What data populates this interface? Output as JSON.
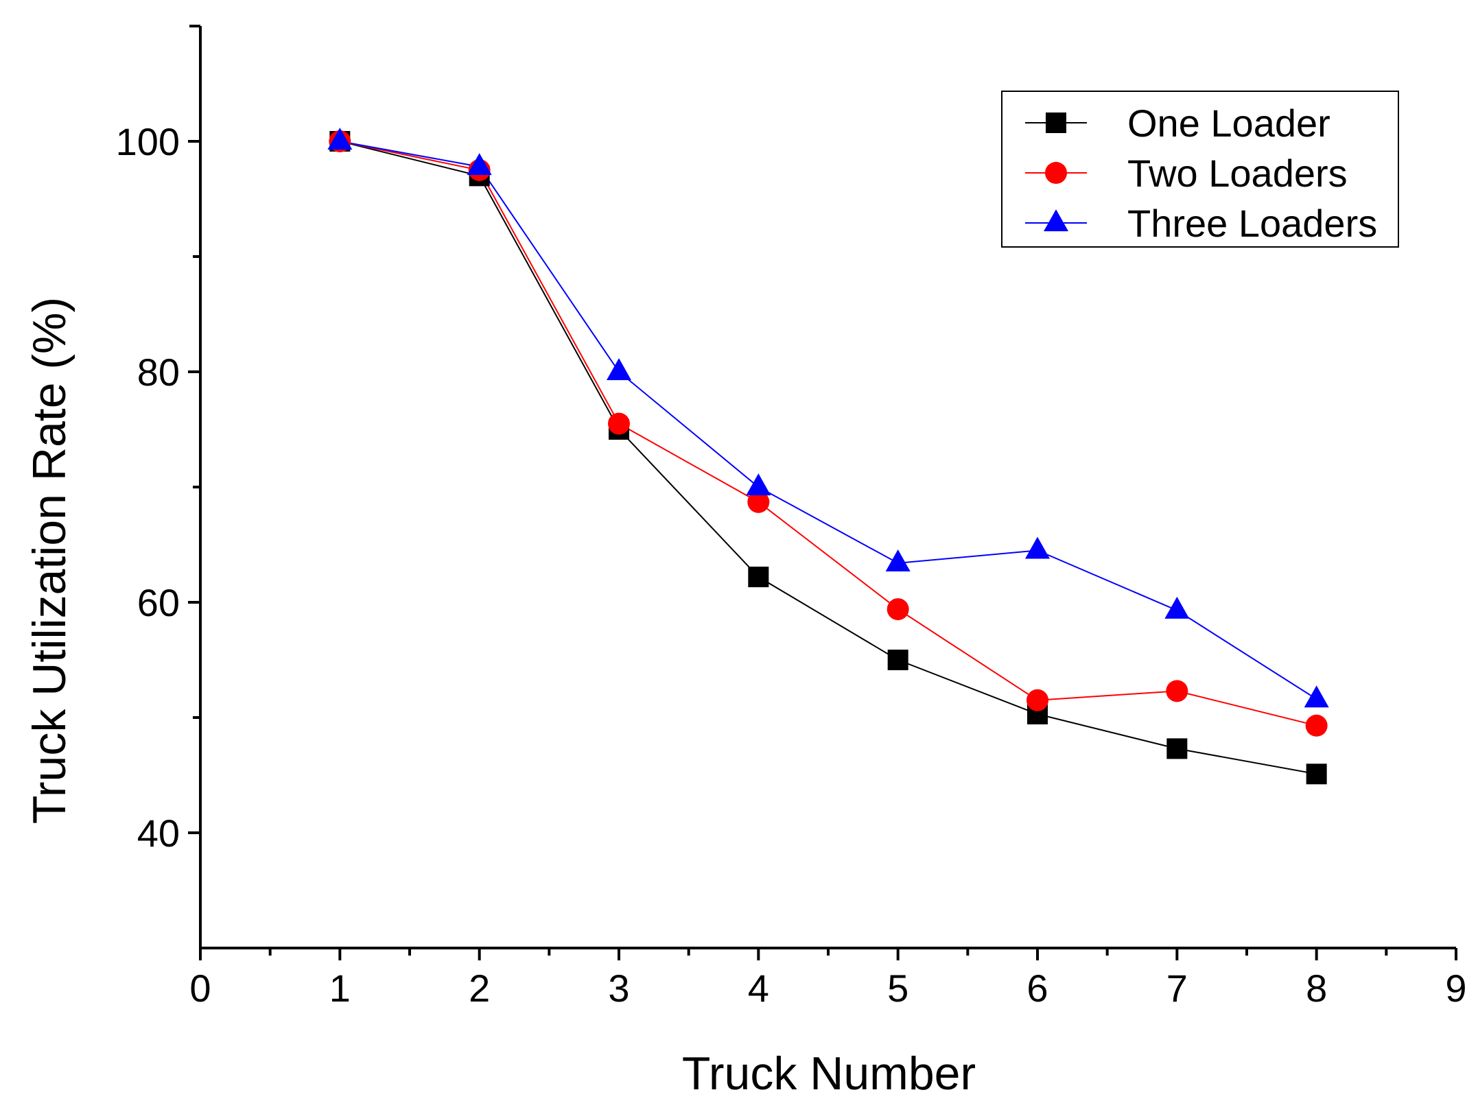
{
  "chart_data": {
    "type": "line",
    "title": "",
    "xlabel": "Truck Number",
    "ylabel": "Truck Utilization Rate (%)",
    "xlim": [
      0,
      9
    ],
    "ylim": [
      30,
      110
    ],
    "x_ticks": [
      0,
      1,
      2,
      3,
      4,
      5,
      6,
      7,
      8,
      9
    ],
    "x_tick_labels": [
      "0",
      "1",
      "2",
      "3",
      "4",
      "5",
      "6",
      "7",
      "8",
      "9"
    ],
    "y_ticks": [
      40,
      60,
      80,
      100
    ],
    "y_tick_labels": [
      "40",
      "60",
      "80",
      "100"
    ],
    "grid": false,
    "legend_position": "top-right",
    "x": [
      1,
      2,
      3,
      4,
      5,
      6,
      7,
      8
    ],
    "series": [
      {
        "name": "One Loader",
        "color": "#000000",
        "marker": "square",
        "values": [
          100,
          97,
          75,
          62.2,
          55,
          50.3,
          47.3,
          45.1
        ]
      },
      {
        "name": "Two Loaders",
        "color": "#ff0000",
        "marker": "circle",
        "values": [
          100,
          97.5,
          75.5,
          68.7,
          59.4,
          51.5,
          52.3,
          49.3
        ]
      },
      {
        "name": "Three Loaders",
        "color": "#0000ff",
        "marker": "triangle",
        "values": [
          100,
          97.8,
          80,
          70,
          63.4,
          64.5,
          59.3,
          51.6
        ]
      }
    ]
  }
}
